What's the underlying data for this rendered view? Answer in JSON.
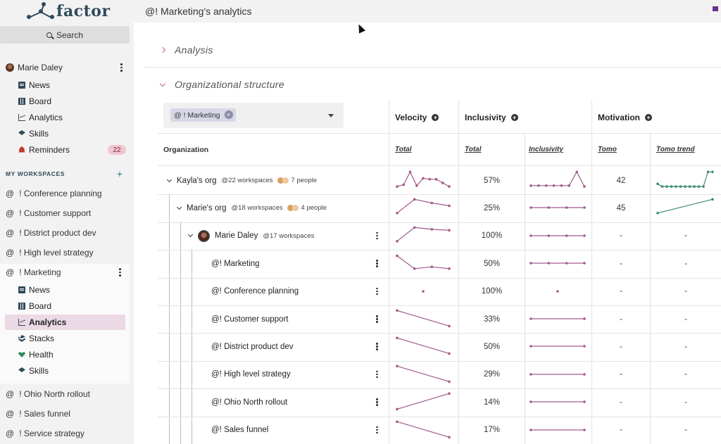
{
  "app": {
    "logo_text": "factor"
  },
  "sidebar": {
    "search_label": "Search",
    "user": {
      "name": "Marie Daley"
    },
    "user_nav": [
      {
        "label": "News",
        "icon": "news-icon"
      },
      {
        "label": "Board",
        "icon": "board-icon"
      },
      {
        "label": "Analytics",
        "icon": "analytics-icon"
      },
      {
        "label": "Skills",
        "icon": "skills-icon"
      },
      {
        "label": "Reminders",
        "icon": "bell-icon",
        "badge": "22"
      }
    ],
    "workspaces_label": "MY WORKSPACES",
    "workspaces": [
      "! Conference planning",
      "! Customer support",
      "! District product dev",
      "! High level strategy",
      "! Marketing"
    ],
    "marketing_nav": [
      {
        "label": "News",
        "icon": "news-icon"
      },
      {
        "label": "Board",
        "icon": "board-icon"
      },
      {
        "label": "Analytics",
        "icon": "analytics-icon",
        "active": true
      },
      {
        "label": "Stacks",
        "icon": "stacks-icon"
      },
      {
        "label": "Health",
        "icon": "health-icon"
      },
      {
        "label": "Skills",
        "icon": "skills-icon"
      }
    ],
    "workspaces_after": [
      "! Ohio North rollout",
      "! Sales funnel",
      "! Service strategy"
    ],
    "at_symbol": "@"
  },
  "header": {
    "title": "@! Marketing's analytics"
  },
  "sections": {
    "analysis": "Analysis",
    "org_structure": "Organizational structure"
  },
  "filter": {
    "chip": "@ ! Marketing"
  },
  "columns": {
    "velocity": "Velocity",
    "inclusivity": "Inclusivity",
    "motivation": "Motivation",
    "organization": "Organization",
    "sub": [
      "Total",
      "Total",
      "Inclusivity",
      "Tomo",
      "Tomo trend"
    ]
  },
  "colors": {
    "accent": "#a05a8c",
    "teal": "#3f8a72"
  },
  "rows": [
    {
      "name": "Kayla's org",
      "meta": "@22 workspaces",
      "people": "7 people",
      "inclusivity": "57%",
      "tomo": "42",
      "velocity_trend": [
        0.15,
        0.25,
        0.95,
        0.2,
        0.6,
        0.55,
        0.55,
        0.35,
        0.15
      ],
      "inclusivity_trend": [
        0.2,
        0.2,
        0.2,
        0.2,
        0.2,
        0.2,
        0.95,
        0.15
      ],
      "tomo_trend": [
        0.3,
        0.15,
        0.15,
        0.15,
        0.15,
        0.15,
        0.15,
        0.15,
        0.15,
        0.15,
        0.15,
        0.95,
        0.95
      ]
    },
    {
      "name": "Marie's org",
      "meta": "@18 workspaces",
      "people": "4 people",
      "inclusivity": "25%",
      "tomo": "45",
      "velocity_trend": [
        0.2,
        0.95,
        0.75,
        0.6
      ],
      "inclusivity_trend": [
        0.5,
        0.5,
        0.5,
        0.5
      ],
      "tomo_trend": [
        0.2,
        0.95
      ]
    },
    {
      "name": "Marie Daley",
      "meta": "@17 workspaces",
      "inclusivity": "100%",
      "tomo": "-",
      "tomo_trend_text": "-",
      "velocity_trend": [
        0.2,
        0.95,
        0.85,
        0.8
      ],
      "inclusivity_trend": [
        0.5,
        0.5,
        0.5,
        0.5
      ]
    },
    {
      "name": "@! Marketing",
      "inclusivity": "50%",
      "tomo": "-",
      "tomo_trend_text": "-",
      "velocity_trend": [
        0.9,
        0.2,
        0.3,
        0.2
      ],
      "inclusivity_trend": [
        0.5,
        0.5,
        0.5,
        0.5
      ]
    },
    {
      "name": "@! Conference planning",
      "inclusivity": "100%",
      "tomo": "-",
      "tomo_trend_text": "-",
      "velocity_trend": [
        0.5
      ],
      "inclusivity_trend": [
        0.5
      ]
    },
    {
      "name": "@! Customer support",
      "inclusivity": "33%",
      "tomo": "-",
      "tomo_trend_text": "-",
      "velocity_trend": [
        0.95,
        0.1
      ],
      "inclusivity_trend": [
        0.5,
        0.5
      ]
    },
    {
      "name": "@! District product dev",
      "inclusivity": "50%",
      "tomo": "-",
      "tomo_trend_text": "-",
      "velocity_trend": [
        0.95,
        0.1
      ],
      "inclusivity_trend": [
        0.5,
        0.5
      ]
    },
    {
      "name": "@! High level strategy",
      "inclusivity": "29%",
      "tomo": "-",
      "tomo_trend_text": "-",
      "velocity_trend": [
        0.95,
        0.1
      ],
      "inclusivity_trend": [
        0.5,
        0.5
      ]
    },
    {
      "name": "@! Ohio North rollout",
      "inclusivity": "14%",
      "tomo": "-",
      "tomo_trend_text": "-",
      "velocity_trend": [
        0.1,
        0.95
      ],
      "inclusivity_trend": [
        0.5,
        0.5
      ]
    },
    {
      "name": "@! Sales funnel",
      "inclusivity": "17%",
      "tomo": "-",
      "tomo_trend_text": "-",
      "velocity_trend": [
        0.95,
        0.1
      ],
      "inclusivity_trend": [
        0.5,
        0.5
      ]
    }
  ]
}
